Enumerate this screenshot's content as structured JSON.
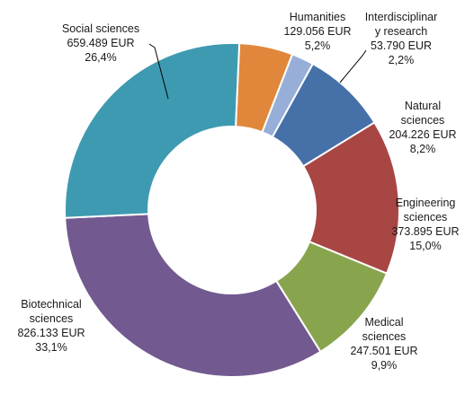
{
  "chart_data": {
    "type": "pie",
    "variant": "donut",
    "currency": "EUR",
    "slices": [
      {
        "name": "Humanities",
        "name_lines": [
          "Humanities"
        ],
        "value_text": "129.056 EUR",
        "value": 129056,
        "percent_text": "5,2%",
        "percent": 5.2,
        "color": "#E0873B"
      },
      {
        "name": "Interdisciplinary research",
        "name_lines": [
          "Interdisciplinar",
          "y research"
        ],
        "value_text": "53.790 EUR",
        "value": 53790,
        "percent_text": "2,2%",
        "percent": 2.2,
        "color": "#97AFD8"
      },
      {
        "name": "Natural sciences",
        "name_lines": [
          "Natural",
          "sciences"
        ],
        "value_text": "204.226 EUR",
        "value": 204226,
        "percent_text": "8,2%",
        "percent": 8.2,
        "color": "#4670A8"
      },
      {
        "name": "Engineering sciences",
        "name_lines": [
          "Engineering",
          "sciences"
        ],
        "value_text": "373.895 EUR",
        "value": 373895,
        "percent_text": "15,0%",
        "percent": 15.0,
        "color": "#A84644"
      },
      {
        "name": "Medical sciences",
        "name_lines": [
          "Medical",
          "sciences"
        ],
        "value_text": "247.501 EUR",
        "value": 247501,
        "percent_text": "9,9%",
        "percent": 9.9,
        "color": "#88A54E"
      },
      {
        "name": "Biotechnical sciences",
        "name_lines": [
          "Biotechnical",
          "sciences"
        ],
        "value_text": "826.133 EUR",
        "value": 826133,
        "percent_text": "33,1%",
        "percent": 33.1,
        "color": "#725A90"
      },
      {
        "name": "Social sciences",
        "name_lines": [
          "Social sciences"
        ],
        "value_text": "659.489 EUR",
        "value": 659489,
        "percent_text": "26,4%",
        "percent": 26.4,
        "color": "#3E9AB0"
      }
    ]
  }
}
